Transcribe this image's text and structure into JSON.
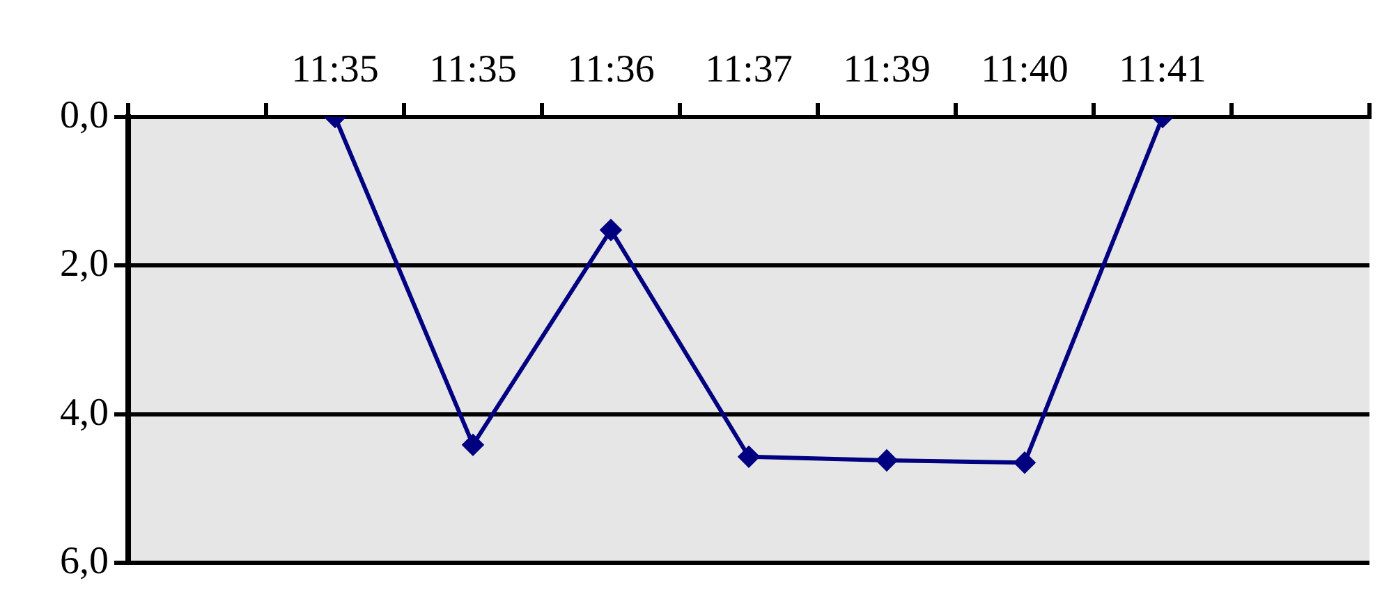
{
  "chart_data": {
    "type": "line",
    "categories": [
      null,
      "11:35",
      "11:35",
      "11:36",
      "11:37",
      "11:39",
      "11:40",
      "11:41",
      null
    ],
    "series": [
      {
        "color": "#000080",
        "values": [
          null,
          0,
          4.41,
          1.52,
          4.57,
          4.62,
          4.65,
          0,
          null
        ]
      }
    ],
    "ylim": [
      6,
      0
    ],
    "yticks": [
      {
        "value": 0,
        "label": "0,0"
      },
      {
        "value": 2,
        "label": "2,0"
      },
      {
        "value": 4,
        "label": "4,0"
      },
      {
        "value": 6,
        "label": "6,0"
      }
    ],
    "grid": "y",
    "legend": false,
    "marker": "diamond",
    "line_style": "solid"
  }
}
